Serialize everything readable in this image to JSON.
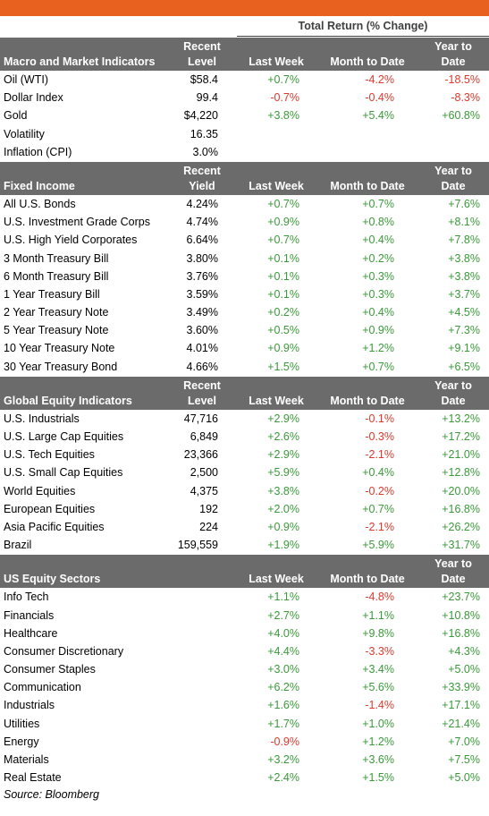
{
  "header": {
    "total_return_label": "Total Return (% Change)"
  },
  "colors": {
    "accent_bar": "#e8611e",
    "header_bg": "#6b6b6b",
    "positive": "#3a9a3a",
    "negative": "#e0382c"
  },
  "sections": [
    {
      "title": "Macro and Market Indicators",
      "level_header_1": "Recent",
      "level_header_2": "Level",
      "week_header": "Last Week",
      "mtd_header": "Month to Date",
      "ytd_header_1": "Year to",
      "ytd_header_2": "Date",
      "rows": [
        {
          "name": "Oil (WTI)",
          "level": "$58.4",
          "week": "+0.7%",
          "mtd": "-4.2%",
          "ytd": "-18.5%"
        },
        {
          "name": "Dollar Index",
          "level": "99.4",
          "week": "-0.7%",
          "mtd": "-0.4%",
          "ytd": "-8.3%"
        },
        {
          "name": "Gold",
          "level": "$4,220",
          "week": "+3.8%",
          "mtd": "+5.4%",
          "ytd": "+60.8%"
        },
        {
          "name": "Volatility",
          "level": "16.35",
          "week": "",
          "mtd": "",
          "ytd": ""
        },
        {
          "name": "Inflation (CPI)",
          "level": "3.0%",
          "week": "",
          "mtd": "",
          "ytd": ""
        }
      ]
    },
    {
      "title": "Fixed Income",
      "level_header_1": "Recent",
      "level_header_2": "Yield",
      "week_header": "Last Week",
      "mtd_header": "Month to Date",
      "ytd_header_1": "Year to",
      "ytd_header_2": "Date",
      "rows": [
        {
          "name": "All U.S. Bonds",
          "level": "4.24%",
          "week": "+0.7%",
          "mtd": "+0.7%",
          "ytd": "+7.6%"
        },
        {
          "name": "U.S. Investment Grade Corps",
          "level": "4.74%",
          "week": "+0.9%",
          "mtd": "+0.8%",
          "ytd": "+8.1%"
        },
        {
          "name": "U.S. High Yield Corporates",
          "level": "6.64%",
          "week": "+0.7%",
          "mtd": "+0.4%",
          "ytd": "+7.8%"
        },
        {
          "name": "3 Month Treasury Bill",
          "level": "3.80%",
          "week": "+0.1%",
          "mtd": "+0.2%",
          "ytd": "+3.8%"
        },
        {
          "name": "6 Month Treasury Bill",
          "level": "3.76%",
          "week": "+0.1%",
          "mtd": "+0.3%",
          "ytd": "+3.8%"
        },
        {
          "name": "1 Year Treasury Bill",
          "level": "3.59%",
          "week": "+0.1%",
          "mtd": "+0.3%",
          "ytd": "+3.7%"
        },
        {
          "name": "2 Year Treasury Note",
          "level": "3.49%",
          "week": "+0.2%",
          "mtd": "+0.4%",
          "ytd": "+4.5%"
        },
        {
          "name": "5 Year Treasury Note",
          "level": "3.60%",
          "week": "+0.5%",
          "mtd": "+0.9%",
          "ytd": "+7.3%"
        },
        {
          "name": "10 Year Treasury Note",
          "level": "4.01%",
          "week": "+0.9%",
          "mtd": "+1.2%",
          "ytd": "+9.1%"
        },
        {
          "name": "30 Year Treasury Bond",
          "level": "4.66%",
          "week": "+1.5%",
          "mtd": "+0.7%",
          "ytd": "+6.5%"
        }
      ]
    },
    {
      "title": "Global Equity Indicators",
      "level_header_1": "Recent",
      "level_header_2": "Level",
      "week_header": "Last Week",
      "mtd_header": "Month to Date",
      "ytd_header_1": "Year to",
      "ytd_header_2": "Date",
      "rows": [
        {
          "name": "U.S. Industrials",
          "level": "47,716",
          "week": "+2.9%",
          "mtd": "-0.1%",
          "ytd": "+13.2%"
        },
        {
          "name": "U.S. Large Cap Equities",
          "level": "6,849",
          "week": "+2.6%",
          "mtd": "-0.3%",
          "ytd": "+17.2%"
        },
        {
          "name": "U.S. Tech Equities",
          "level": "23,366",
          "week": "+2.9%",
          "mtd": "-2.1%",
          "ytd": "+21.0%"
        },
        {
          "name": "U.S. Small Cap Equities",
          "level": "2,500",
          "week": "+5.9%",
          "mtd": "+0.4%",
          "ytd": "+12.8%"
        },
        {
          "name": "World Equities",
          "level": "4,375",
          "week": "+3.8%",
          "mtd": "-0.2%",
          "ytd": "+20.0%"
        },
        {
          "name": "European Equities",
          "level": "192",
          "week": "+2.0%",
          "mtd": "+0.7%",
          "ytd": "+16.8%"
        },
        {
          "name": "Asia Pacific Equities",
          "level": "224",
          "week": "+0.9%",
          "mtd": "-2.1%",
          "ytd": "+26.2%"
        },
        {
          "name": "Brazil",
          "level": "159,559",
          "week": "+1.9%",
          "mtd": "+5.9%",
          "ytd": "+31.7%"
        }
      ]
    },
    {
      "title": "US Equity Sectors",
      "level_header_1": "",
      "level_header_2": "",
      "week_header": "Last Week",
      "mtd_header": "Month to Date",
      "ytd_header_1": "Year to",
      "ytd_header_2": "Date",
      "rows": [
        {
          "name": "Info Tech",
          "level": "",
          "week": "+1.1%",
          "mtd": "-4.8%",
          "ytd": "+23.7%"
        },
        {
          "name": "Financials",
          "level": "",
          "week": "+2.7%",
          "mtd": "+1.1%",
          "ytd": "+10.8%"
        },
        {
          "name": "Healthcare",
          "level": "",
          "week": "+4.0%",
          "mtd": "+9.8%",
          "ytd": "+16.8%"
        },
        {
          "name": "Consumer Discretionary",
          "level": "",
          "week": "+4.4%",
          "mtd": "-3.3%",
          "ytd": "+4.3%"
        },
        {
          "name": "Consumer Staples",
          "level": "",
          "week": "+3.0%",
          "mtd": "+3.4%",
          "ytd": "+5.0%"
        },
        {
          "name": "Communication",
          "level": "",
          "week": "+6.2%",
          "mtd": "+5.6%",
          "ytd": "+33.9%"
        },
        {
          "name": "Industrials",
          "level": "",
          "week": "+1.6%",
          "mtd": "-1.4%",
          "ytd": "+17.1%"
        },
        {
          "name": "Utilities",
          "level": "",
          "week": "+1.7%",
          "mtd": "+1.0%",
          "ytd": "+21.4%"
        },
        {
          "name": "Energy",
          "level": "",
          "week": "-0.9%",
          "mtd": "+1.2%",
          "ytd": "+7.0%"
        },
        {
          "name": "Materials",
          "level": "",
          "week": "+3.2%",
          "mtd": "+3.6%",
          "ytd": "+7.5%"
        },
        {
          "name": "Real Estate",
          "level": "",
          "week": "+2.4%",
          "mtd": "+1.5%",
          "ytd": "+5.0%"
        }
      ]
    }
  ],
  "footer": {
    "source": "Source: Bloomberg"
  }
}
